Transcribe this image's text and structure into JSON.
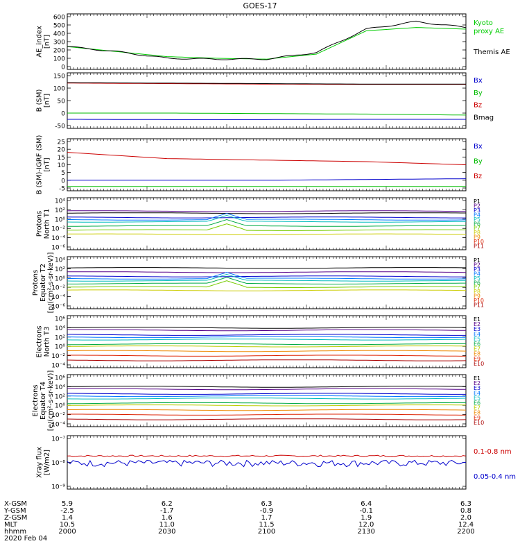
{
  "title": "GOES-17",
  "panels": [
    {
      "id": "ae",
      "ylabel": [
        "AE_index",
        "[nT]"
      ],
      "yticks": [
        "600",
        "500",
        "400",
        "300",
        "200",
        "100",
        "0"
      ],
      "legend": [
        {
          "text": "Kyoto",
          "color": "#00cc00"
        },
        {
          "text": "proxy AE",
          "color": "#00cc00"
        },
        {
          "text": "Themis AE",
          "color": "#000000"
        }
      ]
    },
    {
      "id": "bsm",
      "ylabel": [
        "B (SM)",
        "[nT]"
      ],
      "yticks": [
        "150",
        "100",
        "50",
        "0",
        "-50"
      ],
      "legend": [
        {
          "text": "Bx",
          "color": "#0000cc"
        },
        {
          "text": "By",
          "color": "#00bb00"
        },
        {
          "text": "Bz",
          "color": "#cc0000"
        },
        {
          "text": "Bmag",
          "color": "#000000"
        }
      ]
    },
    {
      "id": "bigrf",
      "ylabel": [
        "B (SM)-IGRF (SM)",
        "[nT]"
      ],
      "yticks": [
        "25",
        "20",
        "15",
        "10",
        "5",
        "0",
        "-5"
      ],
      "legend": [
        {
          "text": "Bx",
          "color": "#0000cc"
        },
        {
          "text": "By",
          "color": "#00bb00"
        },
        {
          "text": "Bz",
          "color": "#cc0000"
        }
      ]
    },
    {
      "id": "pnorth",
      "ylabel": [
        "Protons",
        "North T1"
      ],
      "yticks": [
        "10⁴",
        "10²",
        "10⁰",
        "10⁻²",
        "10⁻⁴",
        "10⁻⁶"
      ],
      "legend": [
        "P1",
        "P2",
        "P3",
        "P4",
        "P5",
        "P6",
        "P7",
        "P8",
        "P9",
        "P10",
        "P11"
      ]
    },
    {
      "id": "peq",
      "ylabel": [
        "Protons",
        "Equator T2",
        "[p/(cm²-s-sr-keV)]"
      ],
      "yticks": [
        "10⁴",
        "10²",
        "10⁰",
        "10⁻²",
        "10⁻⁴",
        "10⁻⁶"
      ],
      "legend": [
        "P1",
        "P2",
        "P3",
        "P4",
        "P5",
        "P6",
        "P7",
        "P8",
        "P9",
        "P10",
        "P11"
      ]
    },
    {
      "id": "enorth",
      "ylabel": [
        "Electrons",
        "North T3"
      ],
      "yticks": [
        "10⁶",
        "10⁴",
        "10²",
        "10⁰",
        "10⁻²",
        "10⁻⁴"
      ],
      "legend": [
        "E1",
        "E2",
        "E3",
        "E4",
        "E5",
        "E6",
        "E7",
        "E8",
        "E9",
        "E10"
      ]
    },
    {
      "id": "eeq",
      "ylabel": [
        "Electrons",
        "Equator T4",
        "[e/(cm²-s-sr-keV)]"
      ],
      "yticks": [
        "10⁶",
        "10⁴",
        "10²",
        "10⁰",
        "10⁻²",
        "10⁻⁴"
      ],
      "legend": [
        "E1",
        "E2",
        "E3",
        "E4",
        "E5",
        "E6",
        "E7",
        "E8",
        "E9",
        "E10"
      ]
    },
    {
      "id": "xray",
      "ylabel": [
        "Xray flux",
        "[W/m2]"
      ],
      "yticks": [
        "10⁻⁷",
        "10⁻⁸",
        "10⁻⁹"
      ],
      "legend": [
        {
          "text": "0.1-0.8 nm",
          "color": "#cc0000"
        },
        {
          "text": "0.05-0.4 nm",
          "color": "#0000cc"
        }
      ]
    }
  ],
  "channel_colors": {
    "P": [
      "#000000",
      "#550088",
      "#0000cc",
      "#0077ff",
      "#00bbbb",
      "#00aa44",
      "#77cc00",
      "#cccc00",
      "#ee8800",
      "#dd2200",
      "#aa0000"
    ],
    "E": [
      "#000000",
      "#550088",
      "#0000cc",
      "#0077ff",
      "#00bbbb",
      "#00aa44",
      "#bbcc00",
      "#ee8800",
      "#dd2200",
      "#aa0000"
    ]
  },
  "footer": {
    "rows": [
      {
        "label": "X-GSM",
        "values": [
          "5.9",
          "6.2",
          "6.3",
          "6.4",
          "6.3"
        ]
      },
      {
        "label": "Y-GSM",
        "values": [
          "-2.5",
          "-1.7",
          "-0.9",
          "-0.1",
          "0.8"
        ]
      },
      {
        "label": "Z-GSM",
        "values": [
          "1.4",
          "1.6",
          "1.7",
          "1.9",
          "2.0"
        ]
      },
      {
        "label": "MLT",
        "values": [
          "10.5",
          "11.0",
          "11.5",
          "12.0",
          "12.4"
        ]
      },
      {
        "label": "hhmm",
        "values": [
          "2000",
          "2030",
          "2100",
          "2130",
          "2200"
        ]
      }
    ],
    "date": "2020 Feb 04"
  },
  "chart_data": [
    {
      "type": "line",
      "panel": "AE index",
      "x_unit": "hhmm",
      "x": [
        2000,
        2015,
        2030,
        2045,
        2100,
        2115,
        2130,
        2145,
        2200
      ],
      "series": [
        {
          "name": "Kyoto proxy AE",
          "values": [
            240,
            180,
            120,
            100,
            90,
            150,
            430,
            470,
            450
          ]
        },
        {
          "name": "Themis AE",
          "values": [
            240,
            180,
            100,
            90,
            90,
            170,
            450,
            540,
            470
          ]
        }
      ],
      "ylim": [
        0,
        600
      ]
    },
    {
      "type": "line",
      "panel": "B (SM)",
      "x": [
        2000,
        2030,
        2100,
        2130,
        2200
      ],
      "series": [
        {
          "name": "Bx",
          "values": [
            -25,
            -26,
            -26,
            -25,
            -25
          ]
        },
        {
          "name": "By",
          "values": [
            0,
            0,
            -2,
            -4,
            -8
          ]
        },
        {
          "name": "Bz",
          "values": [
            120,
            118,
            116,
            115,
            115
          ]
        },
        {
          "name": "Bmag",
          "values": [
            122,
            120,
            118,
            116,
            116
          ]
        }
      ],
      "ylim": [
        -50,
        150
      ]
    },
    {
      "type": "line",
      "panel": "B (SM)-IGRF (SM)",
      "x": [
        2000,
        2030,
        2100,
        2130,
        2200
      ],
      "series": [
        {
          "name": "Bx",
          "values": [
            0,
            0,
            0,
            0.5,
            1
          ]
        },
        {
          "name": "By",
          "values": [
            -4,
            -4,
            -4,
            -4,
            -4
          ]
        },
        {
          "name": "Bz",
          "values": [
            18,
            14,
            13,
            12,
            10
          ]
        }
      ],
      "ylim": [
        -5,
        25
      ]
    },
    {
      "type": "line",
      "panel": "Protons North T1",
      "log": true,
      "channels": [
        "P1",
        "P2",
        "P3",
        "P4",
        "P5",
        "P6",
        "P7",
        "P8"
      ],
      "levels": [
        10,
        30,
        1,
        0.3,
        0.1,
        0.01,
        0.001,
        0.0001
      ],
      "ylim": [
        1e-07,
        10000.0
      ]
    },
    {
      "type": "line",
      "panel": "Protons Equator T2",
      "log": true,
      "channels": [
        "P1",
        "P2",
        "P3",
        "P4",
        "P5",
        "P6",
        "P7",
        "P8"
      ],
      "levels": [
        100,
        10,
        1,
        0.3,
        0.1,
        0.02,
        0.003,
        0.0005
      ],
      "ylim": [
        1e-07,
        10000.0
      ]
    },
    {
      "type": "line",
      "panel": "Electrons North T3",
      "log": true,
      "channels": [
        "E1",
        "E2",
        "E3",
        "E4",
        "E5",
        "E6",
        "E7",
        "E8",
        "E9",
        "E10"
      ],
      "levels": [
        10000,
        3000,
        300,
        100,
        30,
        3,
        1,
        0.1,
        0.01,
        0.001
      ],
      "ylim": [
        0.0001,
        1000000.0
      ]
    },
    {
      "type": "line",
      "panel": "Electrons Equator T4",
      "log": true,
      "channels": [
        "E1",
        "E2",
        "E3",
        "E4",
        "E5",
        "E6",
        "E7",
        "E8",
        "E9",
        "E10"
      ],
      "levels": [
        10000,
        3000,
        300,
        100,
        30,
        3,
        1,
        0.1,
        0.01,
        0.001
      ],
      "ylim": [
        0.0001,
        1000000.0
      ]
    },
    {
      "type": "line",
      "panel": "Xray flux",
      "log": true,
      "series": [
        {
          "name": "0.1-0.8 nm",
          "values": [
            8e-09,
            8e-09,
            8e-09,
            9e-09,
            9e-09
          ]
        },
        {
          "name": "0.05-0.4 nm",
          "values": [
            3e-09,
            3e-09,
            3e-09,
            3e-09,
            3e-09
          ]
        }
      ],
      "ylim": [
        1e-10,
        1e-07
      ]
    }
  ]
}
